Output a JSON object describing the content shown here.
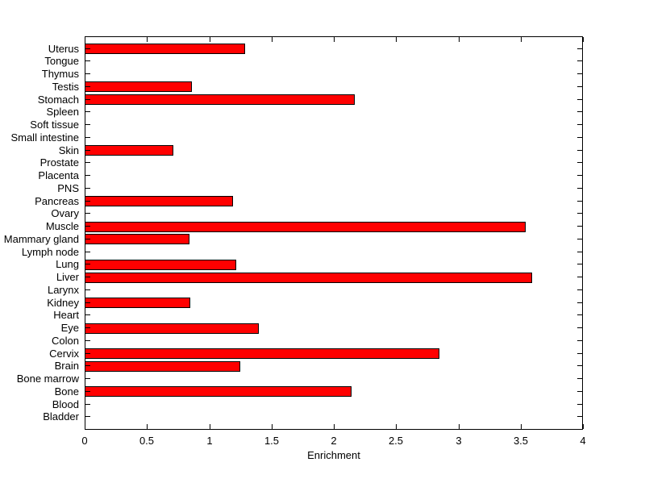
{
  "figure": {
    "background_color": "#FFFFFF",
    "axis_color": "#000000",
    "text_color": "#000000"
  },
  "chart_data": {
    "type": "bar",
    "orientation": "horizontal",
    "title": "",
    "xlabel": "Enrichment",
    "ylabel": "",
    "xlim": [
      0,
      4
    ],
    "xticks": [
      0,
      0.5,
      1,
      1.5,
      2,
      2.5,
      3,
      3.5,
      4
    ],
    "xtick_labels": [
      "0",
      "0.5",
      "1",
      "1.5",
      "2",
      "2.5",
      "3",
      "3.5",
      "4"
    ],
    "grid": false,
    "legend": null,
    "bar_color": "#FF0000",
    "bar_edge_color": "#000000",
    "categories_top_to_bottom": [
      "Uterus",
      "Tongue",
      "Thymus",
      "Testis",
      "Stomach",
      "Spleen",
      "Soft tissue",
      "Small intestine",
      "Skin",
      "Prostate",
      "Placenta",
      "PNS",
      "Pancreas",
      "Ovary",
      "Muscle",
      "Mammary gland",
      "Lymph node",
      "Lung",
      "Liver",
      "Larynx",
      "Kidney",
      "Heart",
      "Eye",
      "Colon",
      "Cervix",
      "Brain",
      "Bone marrow",
      "Bone",
      "Blood",
      "Bladder"
    ],
    "values": [
      1.29,
      0,
      0,
      0.86,
      2.17,
      0,
      0,
      0,
      0.71,
      0,
      0,
      0,
      1.19,
      0,
      3.54,
      0.84,
      0,
      1.22,
      3.59,
      0,
      0.85,
      0,
      1.4,
      0,
      2.85,
      1.25,
      0,
      2.14,
      0,
      0
    ]
  }
}
